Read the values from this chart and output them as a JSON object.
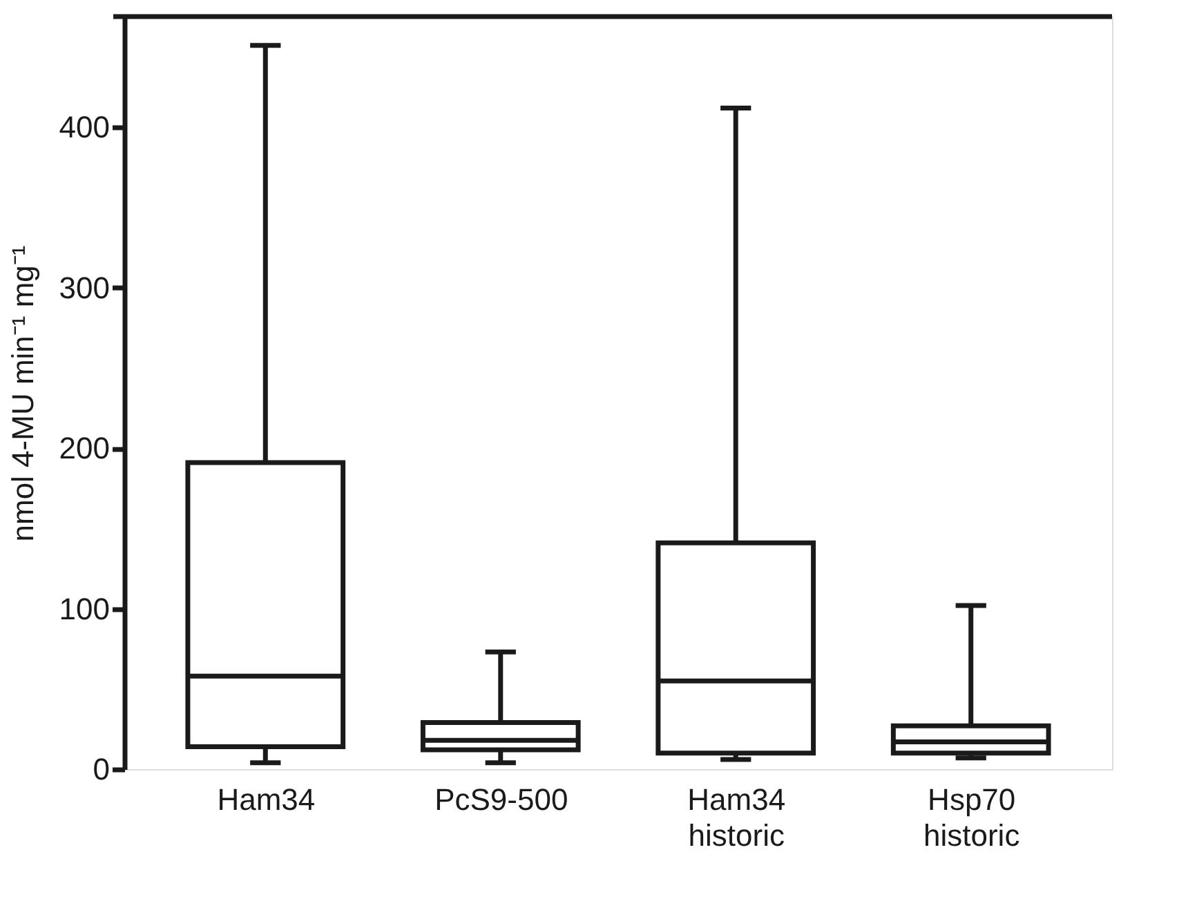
{
  "chart_data": {
    "type": "box",
    "ylabel": "nmol 4-MU min⁻¹ mg⁻¹",
    "categories": [
      "Ham34",
      "PcS9-500",
      "Ham34\nhistoric",
      "Hsp70\nhistoric"
    ],
    "boxes": [
      {
        "low": 4,
        "q1": 14,
        "median": 58,
        "q3": 191,
        "high": 451
      },
      {
        "low": 4,
        "q1": 12,
        "median": 18,
        "q3": 29,
        "high": 73
      },
      {
        "low": 6,
        "q1": 10,
        "median": 55,
        "q3": 141,
        "high": 412
      },
      {
        "low": 7,
        "q1": 10,
        "median": 17,
        "q3": 27,
        "high": 102
      }
    ],
    "ylim": [
      0,
      469
    ],
    "yticks": [
      0,
      100,
      200,
      300,
      400
    ]
  }
}
